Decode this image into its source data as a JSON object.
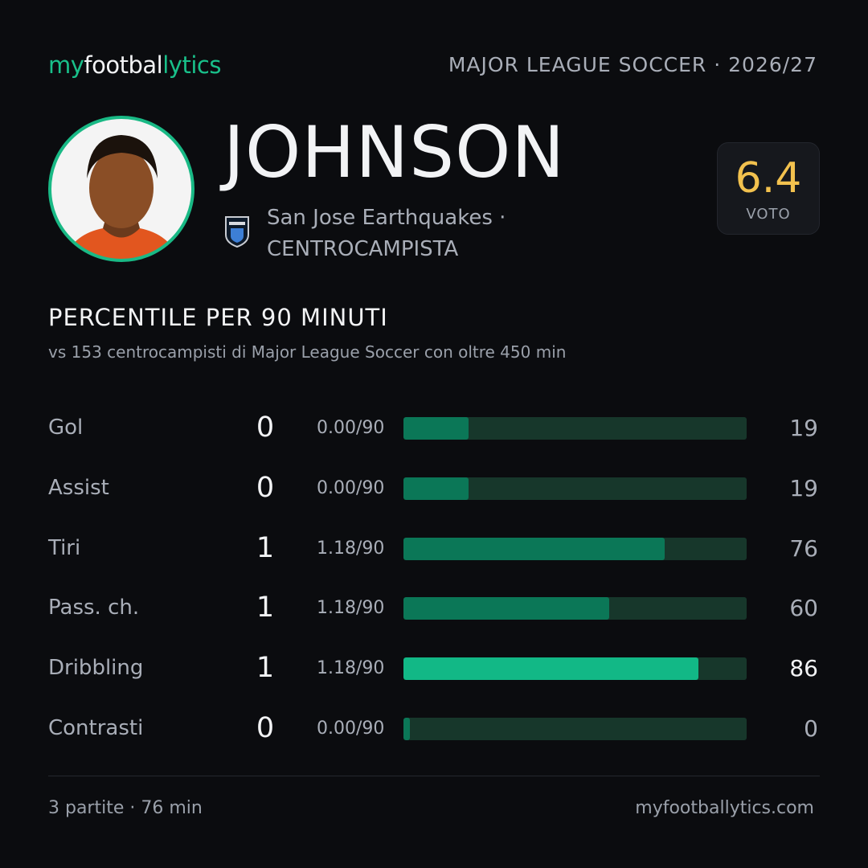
{
  "header": {
    "logo": [
      "my",
      "footbal",
      "lytics"
    ],
    "league": "MAJOR LEAGUE SOCCER · 2026/27"
  },
  "player": {
    "name": "JOHNSON",
    "team": "San Jose Earthquakes · CENTROCAMPISTA",
    "rating": "6.4",
    "rating_label": "VOTO"
  },
  "section": {
    "title": "PERCENTILE PER 90 MINUTI",
    "subtitle": "vs 153 centrocampisti di Major League Soccer con oltre 450 min"
  },
  "stats": [
    {
      "label": "Gol",
      "value": 0,
      "per90": "0.00/90",
      "percentile": 19,
      "color": "#0b7757"
    },
    {
      "label": "Assist",
      "value": 0,
      "per90": "0.00/90",
      "percentile": 19,
      "color": "#0b7757"
    },
    {
      "label": "Tiri",
      "value": 1,
      "per90": "1.18/90",
      "percentile": 76,
      "color": "#0b7757"
    },
    {
      "label": "Pass. ch.",
      "value": 1,
      "per90": "1.18/90",
      "percentile": 60,
      "color": "#0b7757"
    },
    {
      "label": "Dribbling",
      "value": 1,
      "per90": "1.18/90",
      "percentile": 86,
      "color": "#12b886"
    },
    {
      "label": "Contrasti",
      "value": 0,
      "per90": "0.00/90",
      "percentile": 0,
      "color": "#0b7757"
    }
  ],
  "footer": {
    "left": "3 partite · 76 min",
    "right": "myfootballytics.com"
  }
}
